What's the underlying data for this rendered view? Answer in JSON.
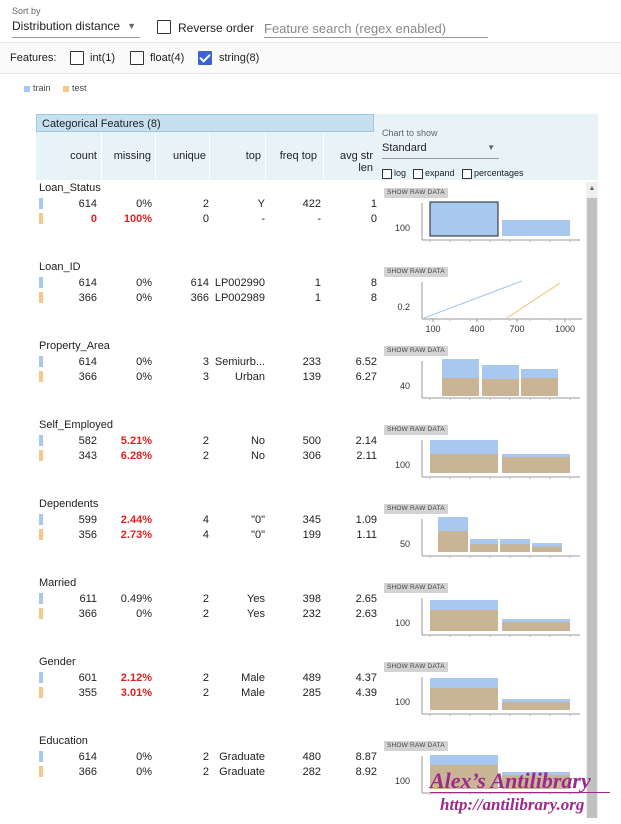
{
  "header": {
    "sort_by_label": "Sort by",
    "sort_by_value": "Distribution distance",
    "reverse_order_label": "Reverse order",
    "search_placeholder": "Feature search (regex enabled)"
  },
  "features_bar": {
    "label": "Features:",
    "filters": [
      {
        "label": "int(1)",
        "checked": false
      },
      {
        "label": "float(4)",
        "checked": false
      },
      {
        "label": "string(8)",
        "checked": true
      }
    ]
  },
  "legend": [
    {
      "label": "train",
      "color": "#a8c8f0"
    },
    {
      "label": "test",
      "color": "#f5c88a"
    }
  ],
  "table": {
    "title": "Categorical Features (8)",
    "columns": [
      "count",
      "missing",
      "unique",
      "top",
      "freq top",
      "avg str len"
    ],
    "chart_to_show_label": "Chart to show",
    "chart_to_show_value": "Standard",
    "options": [
      "log",
      "expand",
      "percentages"
    ],
    "raw_data_label": "SHOW RAW DATA"
  },
  "colors": {
    "train": "#a8c8f0",
    "test": "#f5c88a",
    "overlap": "#c9b496",
    "missing_red": "#e02020",
    "header_bg": "#e8f3f8",
    "title_bg": "#c6e0ef"
  },
  "features": [
    {
      "name": "Loan_Status",
      "rows": [
        {
          "count": "614",
          "missing": "0%",
          "unique": "2",
          "top": "Y",
          "freq": "422",
          "avg": "1"
        },
        {
          "count": "0",
          "missing": "100%",
          "unique": "0",
          "top": "-",
          "freq": "-",
          "avg": "0"
        }
      ],
      "axis_label": "100"
    },
    {
      "name": "Loan_ID",
      "rows": [
        {
          "count": "614",
          "missing": "0%",
          "unique": "614",
          "top": "LP002990",
          "freq": "1",
          "avg": "8"
        },
        {
          "count": "366",
          "missing": "0%",
          "unique": "366",
          "top": "LP002989",
          "freq": "1",
          "avg": "8"
        }
      ],
      "axis_label": "0.2",
      "x_ticks": [
        "100",
        "400",
        "700",
        "1000"
      ]
    },
    {
      "name": "Property_Area",
      "rows": [
        {
          "count": "614",
          "missing": "0%",
          "unique": "3",
          "top": "Semiurb...",
          "freq": "233",
          "avg": "6.52"
        },
        {
          "count": "366",
          "missing": "0%",
          "unique": "3",
          "top": "Urban",
          "freq": "139",
          "avg": "6.27"
        }
      ],
      "axis_label": "40"
    },
    {
      "name": "Self_Employed",
      "rows": [
        {
          "count": "582",
          "missing": "5.21%",
          "unique": "2",
          "top": "No",
          "freq": "500",
          "avg": "2.14"
        },
        {
          "count": "343",
          "missing": "6.28%",
          "unique": "2",
          "top": "No",
          "freq": "306",
          "avg": "2.11"
        }
      ],
      "axis_label": "100"
    },
    {
      "name": "Dependents",
      "rows": [
        {
          "count": "599",
          "missing": "2.44%",
          "unique": "4",
          "top": "\"0\"",
          "freq": "345",
          "avg": "1.09"
        },
        {
          "count": "356",
          "missing": "2.73%",
          "unique": "4",
          "top": "\"0\"",
          "freq": "199",
          "avg": "1.11"
        }
      ],
      "axis_label": "50"
    },
    {
      "name": "Married",
      "rows": [
        {
          "count": "611",
          "missing": "0.49%",
          "unique": "2",
          "top": "Yes",
          "freq": "398",
          "avg": "2.65"
        },
        {
          "count": "366",
          "missing": "0%",
          "unique": "2",
          "top": "Yes",
          "freq": "232",
          "avg": "2.63"
        }
      ],
      "axis_label": "100"
    },
    {
      "name": "Gender",
      "rows": [
        {
          "count": "601",
          "missing": "2.12%",
          "unique": "2",
          "top": "Male",
          "freq": "489",
          "avg": "4.37"
        },
        {
          "count": "355",
          "missing": "3.01%",
          "unique": "2",
          "top": "Male",
          "freq": "285",
          "avg": "4.39"
        }
      ],
      "axis_label": "100"
    },
    {
      "name": "Education",
      "rows": [
        {
          "count": "614",
          "missing": "0%",
          "unique": "2",
          "top": "Graduate",
          "freq": "480",
          "avg": "8.87"
        },
        {
          "count": "366",
          "missing": "0%",
          "unique": "2",
          "top": "Graduate",
          "freq": "282",
          "avg": "8.92"
        }
      ],
      "axis_label": "100"
    }
  ],
  "watermark": {
    "title": "Alex’s Antilibrary",
    "url": "http://antilibrary.org"
  }
}
